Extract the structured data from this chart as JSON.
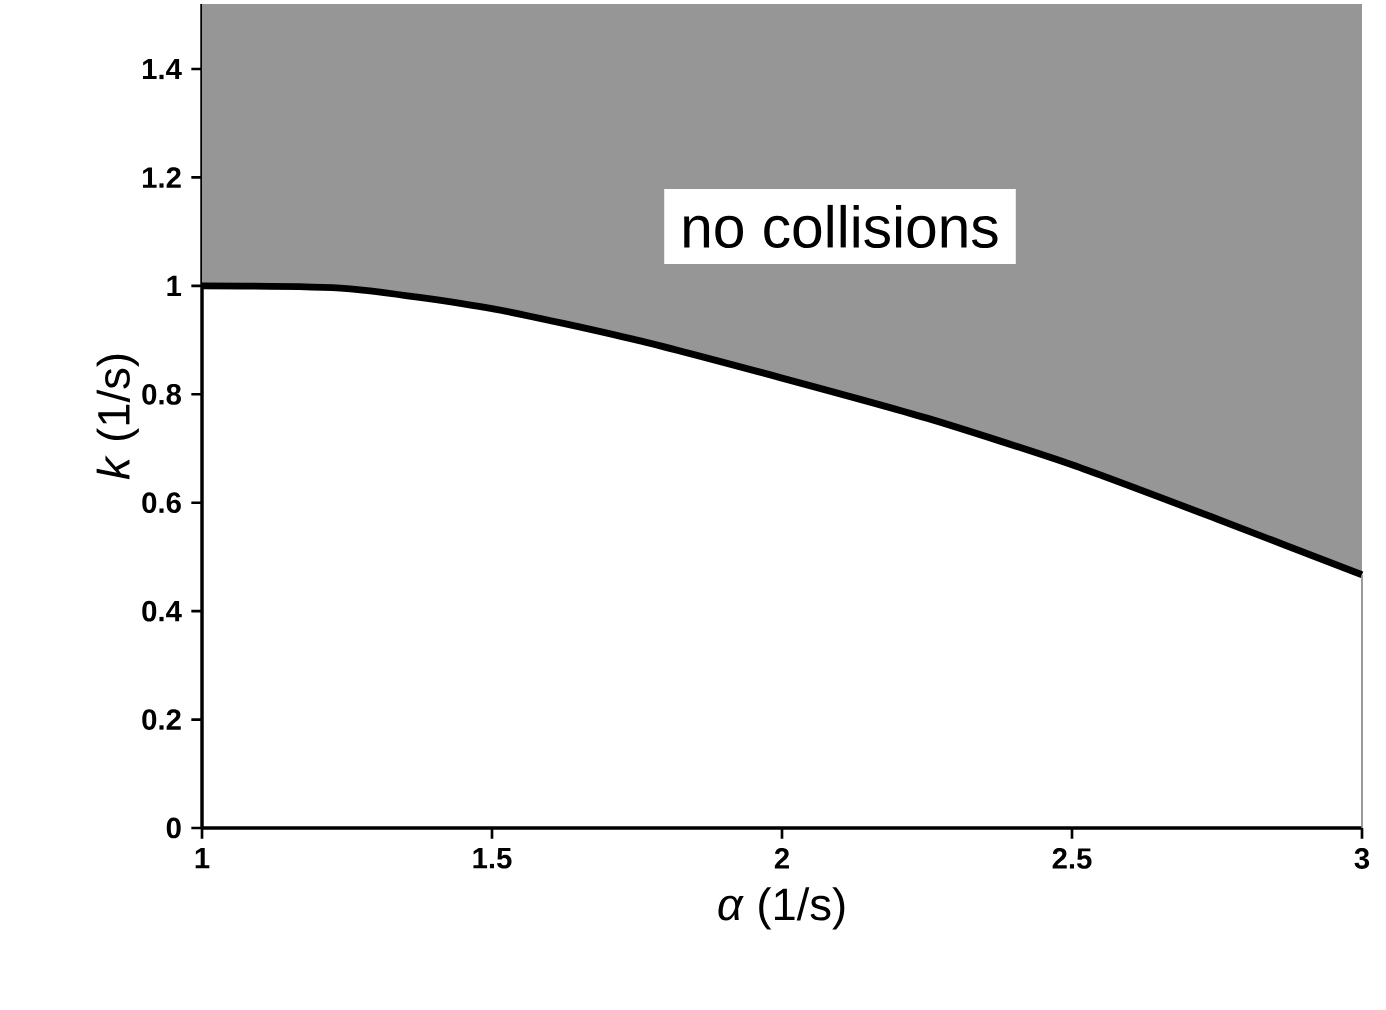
{
  "chart_data": {
    "type": "line",
    "xlabel": "*α* (1/s)",
    "ylabel": "*k* (1/s)",
    "x": [
      1,
      1.25,
      1.5,
      1.75,
      2,
      2.25,
      2.5,
      2.75,
      3
    ],
    "series": [
      {
        "color": "#000000",
        "values": [
          1.0,
          0.995,
          0.958,
          0.9,
          0.83,
          0.756,
          0.67,
          0.57,
          0.467
        ],
        "lower": [
          1.0,
          0.995,
          0.958,
          0.9,
          0.83,
          0.756,
          0.67,
          0.57,
          0.467
        ],
        "upper": [
          1.52,
          1.52,
          1.52,
          1.52,
          1.52,
          1.52,
          1.52,
          1.52,
          1.52
        ]
      }
    ],
    "annotations": [
      "no collisions"
    ],
    "xlim": [
      1,
      3
    ],
    "ylim": [
      0,
      1.52
    ],
    "xticks": [
      1,
      1.5,
      2,
      2.5,
      3
    ],
    "yticks": [
      0,
      0.2,
      0.4,
      0.6,
      0.8,
      1,
      1.2,
      1.4
    ],
    "grid": false,
    "marker": "none",
    "line_style": "solid"
  }
}
